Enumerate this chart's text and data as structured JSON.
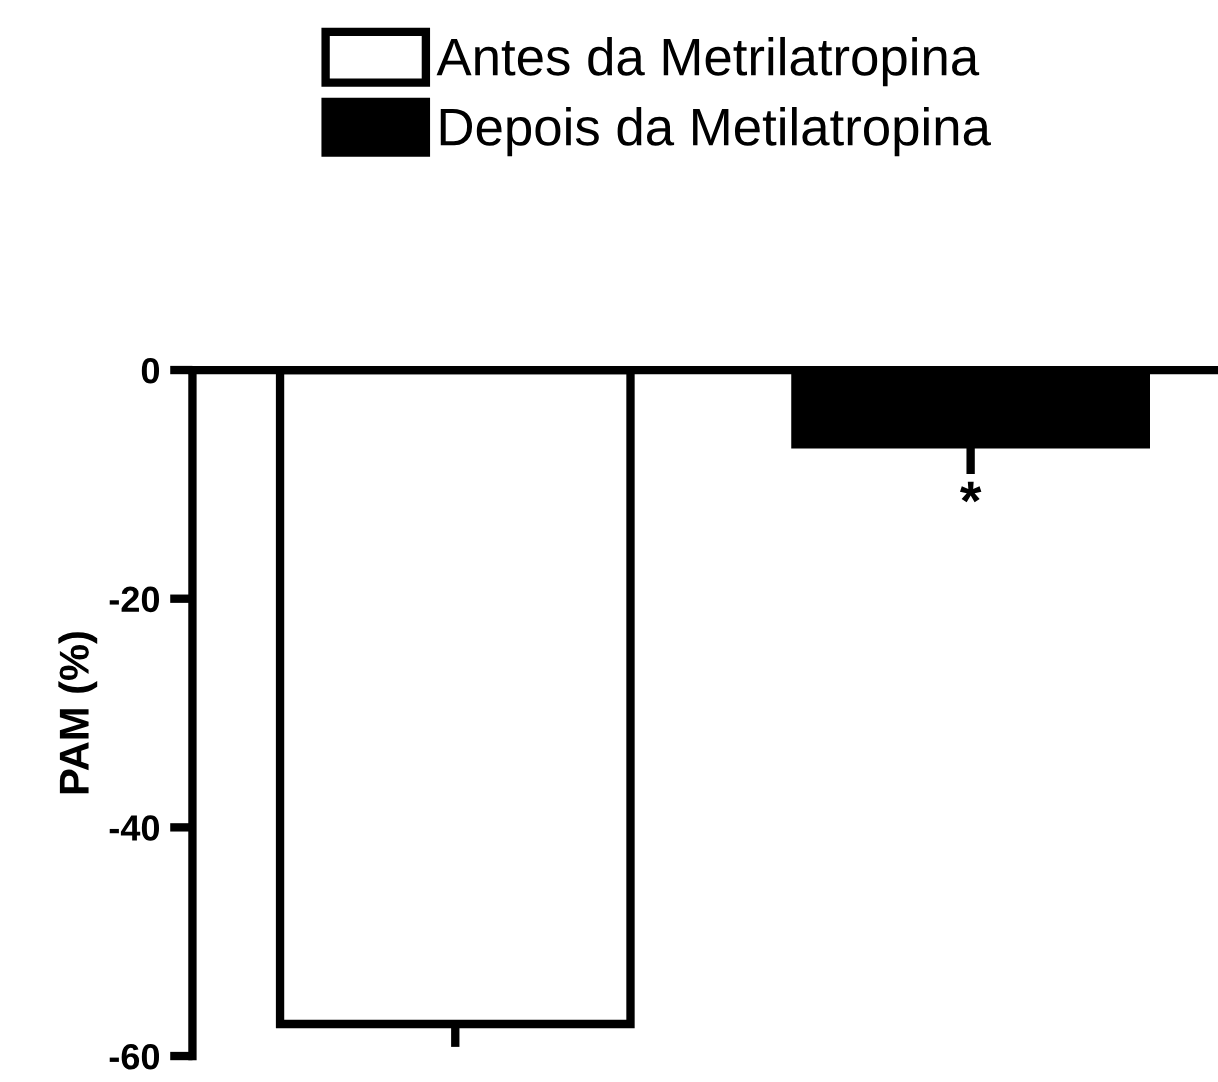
{
  "chart_data": {
    "type": "bar",
    "ylabel": "PAM (%)",
    "categories": [
      null,
      null
    ],
    "series": [
      {
        "name": "Antes da Metrilatropina",
        "color": "#ffffff",
        "values": [
          -57.2,
          null
        ],
        "errors": [
          [
            -59.2,
            -57.2
          ],
          null
        ]
      },
      {
        "name": "Depois da Metilatropina",
        "color": "#000000",
        "values": [
          null,
          -6.5
        ],
        "errors": [
          null,
          [
            -9.1,
            -6.5
          ]
        ]
      }
    ],
    "ylim": [
      -60,
      0
    ],
    "yticks": [
      0,
      -20,
      -40,
      -60
    ],
    "tick_labels": "y",
    "grid": false,
    "legend": "top",
    "annotations": [
      "*"
    ]
  }
}
